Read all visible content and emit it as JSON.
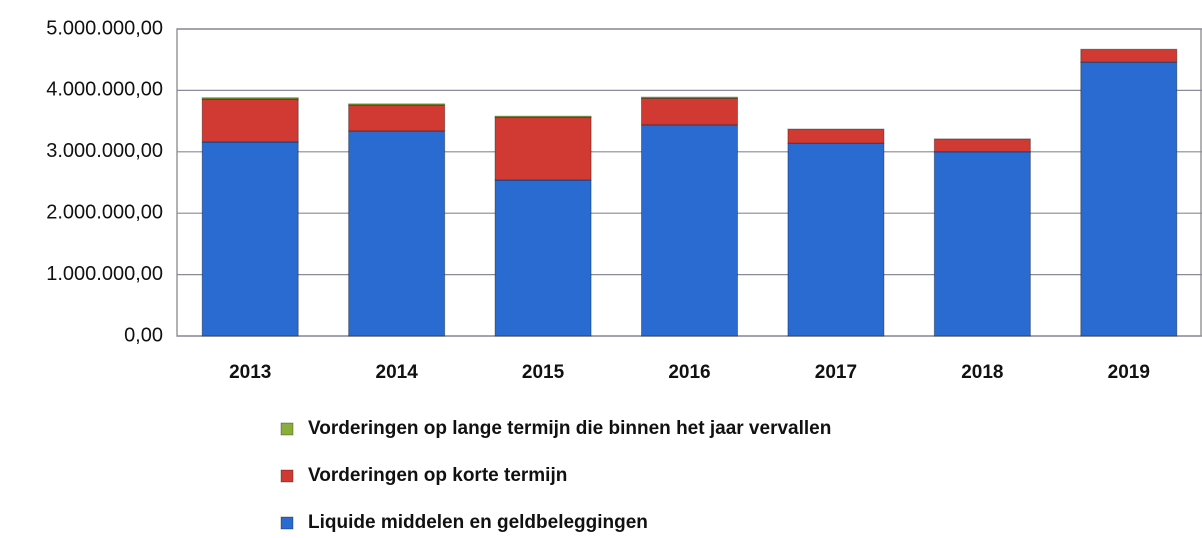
{
  "chart_data": {
    "type": "bar",
    "stacked": true,
    "categories": [
      "2013",
      "2014",
      "2015",
      "2016",
      "2017",
      "2018",
      "2019"
    ],
    "series": [
      {
        "name": "Liquide middelen en geldbeleggingen",
        "color": "#2a6bd1",
        "values": [
          3160000,
          3340000,
          2540000,
          3440000,
          3140000,
          3000000,
          4460000
        ]
      },
      {
        "name": "Vorderingen op korte termijn",
        "color": "#d13a32",
        "values": [
          700000,
          420000,
          1020000,
          430000,
          230000,
          210000,
          210000
        ]
      },
      {
        "name": "Vorderingen op lange termijn die binnen het jaar vervallen",
        "color": "#8aae3c",
        "values": [
          20000,
          20000,
          20000,
          20000,
          0,
          0,
          0
        ]
      }
    ],
    "ylim": [
      0,
      5000000
    ],
    "yticks": [
      {
        "value": 0,
        "label": "0,00"
      },
      {
        "value": 1000000,
        "label": "1.000.000,00"
      },
      {
        "value": 2000000,
        "label": "2.000.000,00"
      },
      {
        "value": 3000000,
        "label": "3.000.000,00"
      },
      {
        "value": 4000000,
        "label": "4.000.000,00"
      },
      {
        "value": 5000000,
        "label": "5.000.000,00"
      }
    ],
    "grid": true
  }
}
